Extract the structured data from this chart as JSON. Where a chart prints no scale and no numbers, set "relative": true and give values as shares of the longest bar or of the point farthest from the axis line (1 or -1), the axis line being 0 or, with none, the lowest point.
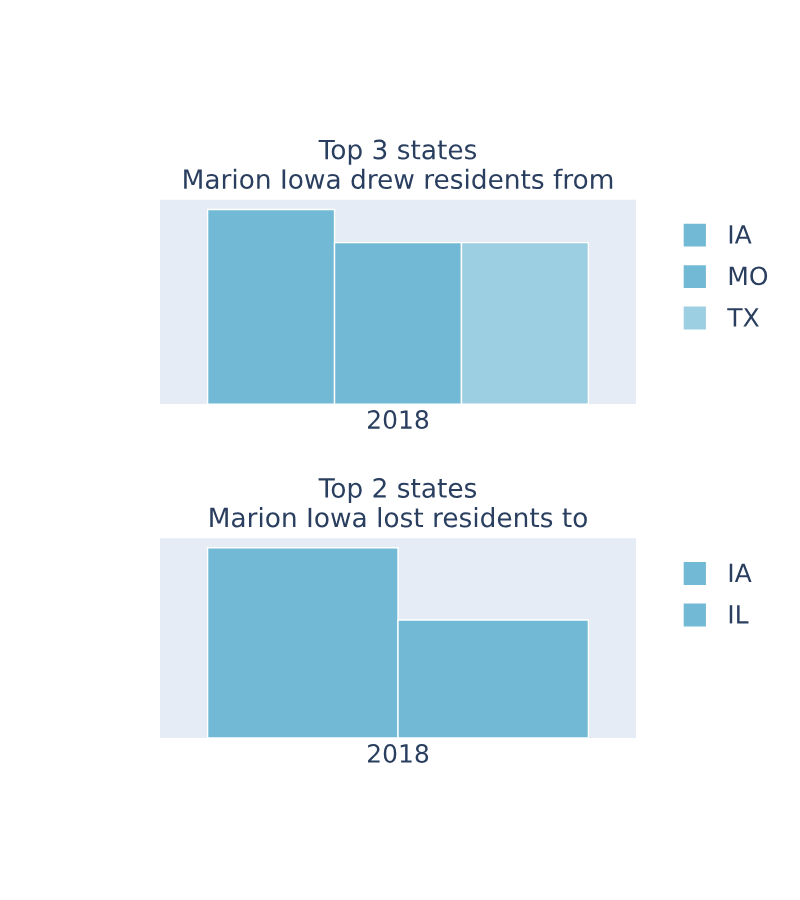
{
  "chart_data": [
    {
      "type": "bar",
      "title": "Top 3 states\nMarion Iowa drew residents from",
      "xlabel": "2018",
      "relative": true,
      "categories": [
        null
      ],
      "legend": "right",
      "grid": false,
      "series": [
        {
          "name": "IA",
          "color": "#72b9d5",
          "values": [
            1
          ]
        },
        {
          "name": "MO",
          "color": "#72b9d5",
          "values": [
            0.83
          ]
        },
        {
          "name": "TX",
          "color": "#9dcfe2",
          "values": [
            0.83
          ]
        }
      ]
    },
    {
      "type": "bar",
      "title": "Top 2 states\nMarion Iowa lost residents to",
      "xlabel": "2018",
      "relative": true,
      "categories": [
        null
      ],
      "legend": "right",
      "grid": false,
      "series": [
        {
          "name": "IA",
          "color": "#72b9d5",
          "values": [
            1
          ]
        },
        {
          "name": "IL",
          "color": "#72b9d5",
          "values": [
            0.62
          ]
        }
      ]
    }
  ]
}
